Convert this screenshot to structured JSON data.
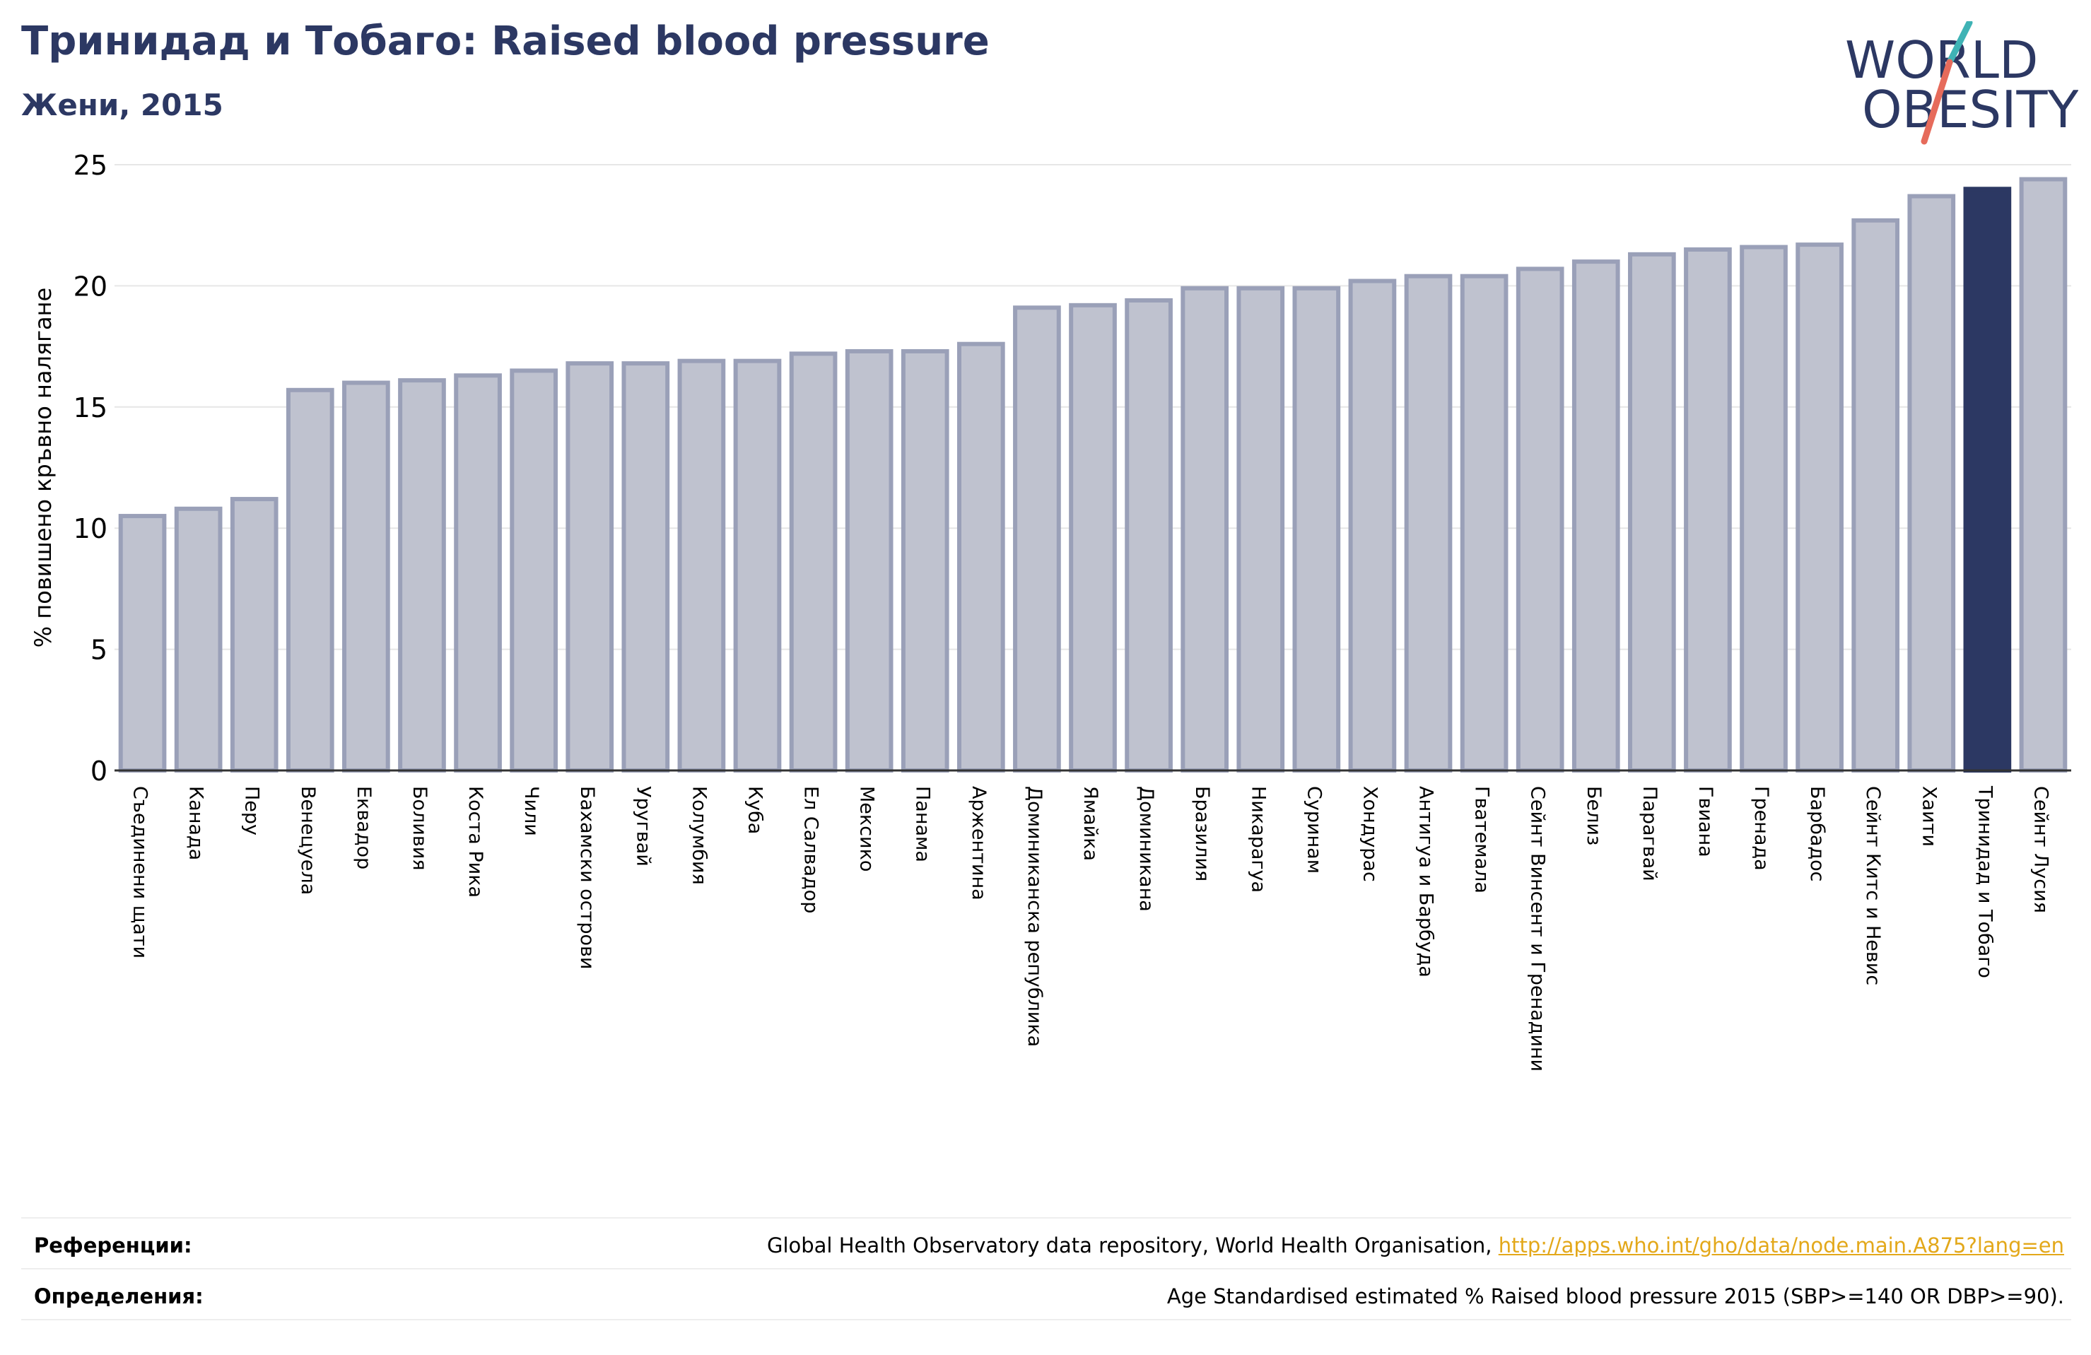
{
  "header": {
    "title": "Тринидад и Тобаго: Raised blood pressure",
    "subtitle": "Жени, 2015"
  },
  "logo": {
    "line1": "WORLD",
    "line2": "OBESITY"
  },
  "colors": {
    "bar": "#bfc2cf",
    "bar_border": "#9aa0b8",
    "highlight": "#2c3863",
    "grid": "#e6e6e6",
    "logo_text": "#2c3863",
    "logo_teal": "#3fb3b5",
    "logo_coral": "#e66b5b",
    "link": "#e3a81a"
  },
  "chart_data": {
    "type": "bar",
    "ylabel": "% повишено кръвно налягане",
    "ylim": [
      0,
      25
    ],
    "yticks": [
      0,
      5,
      10,
      15,
      20,
      25
    ],
    "grid": true,
    "highlight": "Тринидад и Тобаго",
    "categories": [
      "Съединени щати",
      "Канада",
      "Перу",
      "Венецуела",
      "Еквадор",
      "Боливия",
      "Коста Рика",
      "Чили",
      "Бахамски острови",
      "Уругвай",
      "Колумбия",
      "Куба",
      "Ел Салвадор",
      "Мексико",
      "Панама",
      "Аржентина",
      "Доминиканска република",
      "Ямайка",
      "Доминикана",
      "Бразилия",
      "Никарагуа",
      "Суринам",
      "Хондурас",
      "Антигуа и Барбуда",
      "Гватемала",
      "Сейнт Винсент и Гренадини",
      "Белиз",
      "Парагвай",
      "Гвиана",
      "Гренада",
      "Барбадос",
      "Сейнт Китс и Невис",
      "Хаити",
      "Тринидад и Тобаго",
      "Сейнт Лусия"
    ],
    "values": [
      10.5,
      10.8,
      11.2,
      15.7,
      16.0,
      16.1,
      16.3,
      16.5,
      16.8,
      16.8,
      16.9,
      16.9,
      17.2,
      17.3,
      17.3,
      17.6,
      19.1,
      19.2,
      19.4,
      19.9,
      19.9,
      19.9,
      20.2,
      20.4,
      20.4,
      20.7,
      21.0,
      21.3,
      21.5,
      21.6,
      21.7,
      22.7,
      23.7,
      24.0,
      24.4
    ]
  },
  "footer": {
    "references_label": "Референции:",
    "references_text": "Global Health Observatory data repository, World Health Organisation, ",
    "references_link": "http://apps.who.int/gho/data/node.main.A875?lang=en",
    "definitions_label": "Определения:",
    "definitions_text": "Age Standardised estimated % Raised blood pressure 2015 (SBP>=140 OR DBP>=90)."
  }
}
